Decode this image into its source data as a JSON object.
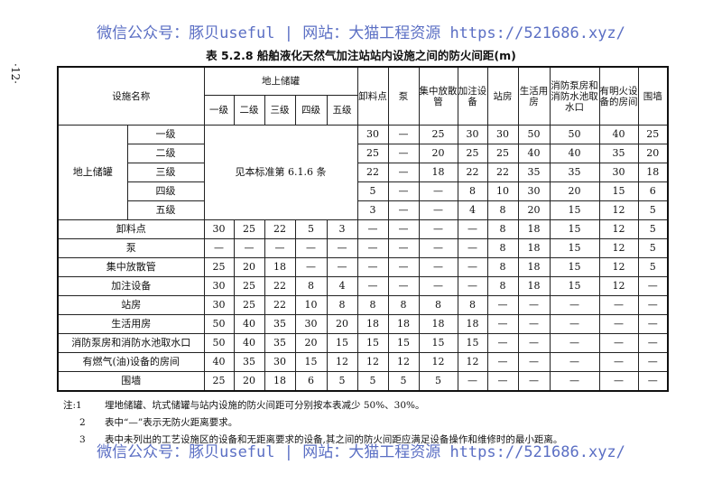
{
  "watermark": "微信公众号：豚贝useful | 网站：大猫工程资源 https://521686.xyz/",
  "page_number": "·12·",
  "title": "表 5.2.8  船舶液化天然气加注站站内设施之间的防火间距(m)",
  "header": {
    "name": "设施名称",
    "tank_group": "地上储罐",
    "tank_grades": [
      "一级",
      "二级",
      "三级",
      "四级",
      "五级"
    ],
    "columns": [
      "卸料点",
      "泵",
      "集中放散管",
      "加注设备",
      "站房",
      "生活用房",
      "消防泵房和消防水池取水口",
      "有明火设备的房间",
      "围墙"
    ]
  },
  "tank_section": {
    "label": "地上储罐",
    "merged_text": "见本标准第 6.1.6 条",
    "rows": [
      {
        "grade": "一级",
        "values": [
          "30",
          "—",
          "25",
          "30",
          "30",
          "50",
          "50",
          "40",
          "25"
        ]
      },
      {
        "grade": "二级",
        "values": [
          "25",
          "—",
          "20",
          "25",
          "25",
          "40",
          "40",
          "35",
          "20"
        ]
      },
      {
        "grade": "三级",
        "values": [
          "22",
          "—",
          "18",
          "22",
          "22",
          "35",
          "35",
          "30",
          "18"
        ]
      },
      {
        "grade": "四级",
        "values": [
          "5",
          "—",
          "—",
          "8",
          "10",
          "30",
          "20",
          "15",
          "6"
        ]
      },
      {
        "grade": "五级",
        "values": [
          "3",
          "—",
          "—",
          "4",
          "8",
          "20",
          "15",
          "12",
          "5"
        ]
      }
    ]
  },
  "rows": [
    {
      "name": "卸料点",
      "values": [
        "30",
        "25",
        "22",
        "5",
        "3",
        "—",
        "—",
        "—",
        "—",
        "8",
        "18",
        "15",
        "12",
        "5"
      ]
    },
    {
      "name": "泵",
      "values": [
        "—",
        "—",
        "—",
        "—",
        "—",
        "—",
        "—",
        "—",
        "—",
        "8",
        "18",
        "15",
        "12",
        "5"
      ]
    },
    {
      "name": "集中放散管",
      "values": [
        "25",
        "20",
        "18",
        "—",
        "—",
        "—",
        "—",
        "—",
        "—",
        "8",
        "18",
        "15",
        "12",
        "5"
      ]
    },
    {
      "name": "加注设备",
      "values": [
        "30",
        "25",
        "22",
        "8",
        "4",
        "—",
        "—",
        "—",
        "—",
        "8",
        "18",
        "15",
        "12",
        "—"
      ]
    },
    {
      "name": "站房",
      "values": [
        "30",
        "25",
        "22",
        "10",
        "8",
        "8",
        "8",
        "8",
        "8",
        "—",
        "—",
        "—",
        "—",
        "—"
      ]
    },
    {
      "name": "生活用房",
      "values": [
        "50",
        "40",
        "35",
        "30",
        "20",
        "18",
        "18",
        "18",
        "18",
        "—",
        "—",
        "—",
        "—",
        "—"
      ]
    },
    {
      "name": "消防泵房和消防水池取水口",
      "values": [
        "50",
        "40",
        "35",
        "20",
        "15",
        "15",
        "15",
        "15",
        "15",
        "—",
        "—",
        "—",
        "—",
        "—"
      ]
    },
    {
      "name": "有燃气(油)设备的房间",
      "values": [
        "40",
        "35",
        "30",
        "15",
        "12",
        "12",
        "12",
        "12",
        "12",
        "—",
        "—",
        "—",
        "—",
        "—"
      ]
    },
    {
      "name": "围墙",
      "values": [
        "25",
        "20",
        "18",
        "6",
        "5",
        "5",
        "5",
        "5",
        "—",
        "—",
        "—",
        "—",
        "—",
        "—"
      ]
    }
  ],
  "notes": [
    {
      "num": "注:1",
      "text": "埋地储罐、坑式储罐与站内设施的防火间距可分别按本表减少 50%、30%。"
    },
    {
      "num": "2",
      "text": "表中“—”表示无防火距离要求。"
    },
    {
      "num": "3",
      "text": "表中未列出的工艺设施区的设备和无距离要求的设备,其之间的防火间距应满足设备操作和维修时的最小距离。"
    }
  ]
}
